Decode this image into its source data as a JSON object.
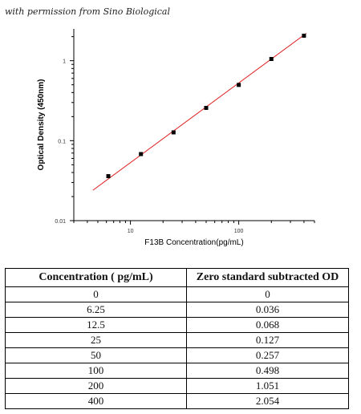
{
  "attribution": "with permission from Sino Biological",
  "chart_data": {
    "type": "scatter",
    "xlabel": "F13B  Concentration(pg/mL)",
    "ylabel": "Optical Density (450nm)",
    "x_scale": "log",
    "y_scale": "log",
    "xlim": [
      3,
      500
    ],
    "ylim": [
      0.01,
      2.5
    ],
    "x_ticks": [
      10,
      100
    ],
    "x_tick_labels": [
      "10",
      "100"
    ],
    "y_ticks": [
      0.01,
      0.1,
      1
    ],
    "y_tick_labels": [
      "0.01",
      "0.1",
      "1"
    ],
    "points": {
      "x": [
        6.25,
        12.5,
        25,
        50,
        100,
        200,
        400
      ],
      "y": [
        0.036,
        0.068,
        0.127,
        0.257,
        0.498,
        1.051,
        2.054
      ]
    },
    "fit_line": {
      "x": [
        4.5,
        420
      ],
      "y": [
        0.024,
        2.2
      ],
      "color": "#e02020"
    },
    "grid": false,
    "colors": {
      "marker": "#000000",
      "axis": "#000000"
    }
  },
  "table": {
    "headers": [
      "Concentration ( pg/mL)",
      "Zero standard subtracted OD"
    ],
    "rows": [
      [
        "0",
        "0"
      ],
      [
        "6.25",
        "0.036"
      ],
      [
        "12.5",
        "0.068"
      ],
      [
        "25",
        "0.127"
      ],
      [
        "50",
        "0.257"
      ],
      [
        "100",
        "0.498"
      ],
      [
        "200",
        "1.051"
      ],
      [
        "400",
        "2.054"
      ]
    ]
  }
}
